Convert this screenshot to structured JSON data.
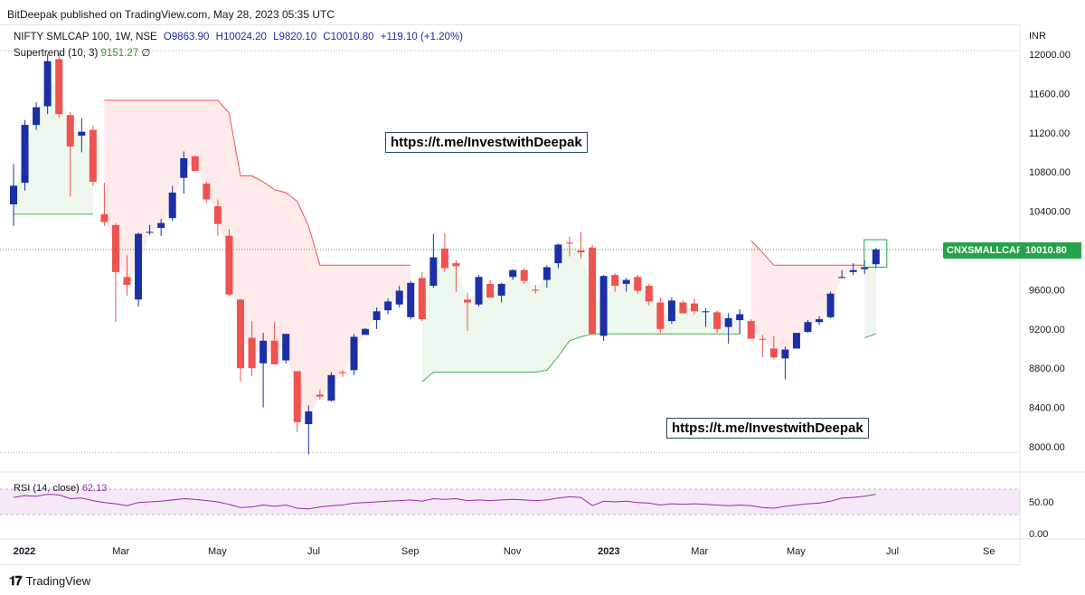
{
  "header": {
    "published": "BitDeepak published on TradingView.com, May 28, 2023 05:35 UTC"
  },
  "legend": {
    "symbol": "NIFTY SMLCAP 100, 1W, NSE",
    "open": "O9863.90",
    "high": "H10024.20",
    "low": "L9820.10",
    "close": "C10010.80",
    "change": "+119.10 (+1.20%)"
  },
  "supertrend": {
    "label": "Supertrend (10, 3)",
    "value": "9151.27",
    "extra": "∅"
  },
  "rsi": {
    "label": "RSI (14, close)",
    "value": "62.13"
  },
  "links": {
    "link1": "https://t.me/InvestwithDeepak",
    "link2": "https://t.me/InvestwithDeepak"
  },
  "price_badge": {
    "symbol": "CNXSMALLCAP",
    "value": "10010.80"
  },
  "footer": {
    "brand": "TradingView"
  },
  "colors": {
    "up": "#1b2fa8",
    "down": "#ef5350",
    "supertrend_up": "#4caf50",
    "supertrend_down": "#ef5350",
    "rsi_line": "#9c27b0",
    "badge": "#26a34a"
  },
  "chart_data": {
    "type": "candlestick",
    "currency": "INR",
    "price_axis": {
      "ylim": [
        7900,
        12100
      ],
      "ticks": [
        "12000.00",
        "11600.00",
        "11200.00",
        "10800.00",
        "10400.00",
        "10000.00",
        "9600.00",
        "9200.00",
        "8800.00",
        "8400.00",
        "8000.00"
      ]
    },
    "rsi_axis": {
      "ticks": [
        "50.00",
        "0.00"
      ],
      "band": [
        30,
        70
      ]
    },
    "x_axis": {
      "labels": [
        "2022",
        "Mar",
        "May",
        "Jul",
        "Sep",
        "Nov",
        "2023",
        "Mar",
        "May",
        "Jul",
        "Se"
      ],
      "label_weeks": [
        0,
        8.5,
        17,
        25.5,
        34,
        43,
        51.5,
        59.5,
        68,
        76.5,
        85
      ]
    },
    "candles": [
      {
        "w": 0,
        "o": 10470,
        "h": 10880,
        "l": 10250,
        "c": 10660
      },
      {
        "w": 1,
        "o": 10690,
        "h": 11330,
        "l": 10610,
        "c": 11280
      },
      {
        "w": 2,
        "o": 11280,
        "h": 11510,
        "l": 11230,
        "c": 11460
      },
      {
        "w": 3,
        "o": 11470,
        "h": 12000,
        "l": 11390,
        "c": 11930
      },
      {
        "w": 4,
        "o": 11950,
        "h": 12010,
        "l": 11350,
        "c": 11390
      },
      {
        "w": 5,
        "o": 11380,
        "h": 11410,
        "l": 10550,
        "c": 11060
      },
      {
        "w": 6,
        "o": 11170,
        "h": 11350,
        "l": 11000,
        "c": 11210
      },
      {
        "w": 7,
        "o": 11230,
        "h": 11270,
        "l": 10660,
        "c": 10700
      },
      {
        "w": 8,
        "o": 10370,
        "h": 10690,
        "l": 10250,
        "c": 10290
      },
      {
        "w": 9,
        "o": 10260,
        "h": 10280,
        "l": 9270,
        "c": 9780
      },
      {
        "w": 10,
        "o": 9730,
        "h": 9950,
        "l": 9540,
        "c": 9650
      },
      {
        "w": 11,
        "o": 9500,
        "h": 10180,
        "l": 9430,
        "c": 10170
      },
      {
        "w": 12,
        "o": 10180,
        "h": 10260,
        "l": 10160,
        "c": 10190
      },
      {
        "w": 13,
        "o": 10230,
        "h": 10320,
        "l": 10150,
        "c": 10280
      },
      {
        "w": 14,
        "o": 10330,
        "h": 10660,
        "l": 10300,
        "c": 10590
      },
      {
        "w": 15,
        "o": 10740,
        "h": 11010,
        "l": 10580,
        "c": 10940
      },
      {
        "w": 16,
        "o": 10960,
        "h": 10970,
        "l": 10820,
        "c": 10810
      },
      {
        "w": 17,
        "o": 10680,
        "h": 10700,
        "l": 10490,
        "c": 10520
      },
      {
        "w": 18,
        "o": 10450,
        "h": 10520,
        "l": 10150,
        "c": 10270
      },
      {
        "w": 19,
        "o": 10150,
        "h": 10220,
        "l": 9540,
        "c": 9550
      },
      {
        "w": 20,
        "o": 9500,
        "h": 9500,
        "l": 8660,
        "c": 8800
      },
      {
        "w": 21,
        "o": 9110,
        "h": 9280,
        "l": 8720,
        "c": 8800
      },
      {
        "w": 22,
        "o": 8850,
        "h": 9160,
        "l": 8400,
        "c": 9080
      },
      {
        "w": 23,
        "o": 9080,
        "h": 9270,
        "l": 8840,
        "c": 8840
      },
      {
        "w": 24,
        "o": 8880,
        "h": 9110,
        "l": 8850,
        "c": 9150
      },
      {
        "w": 25,
        "o": 8770,
        "h": 8770,
        "l": 8150,
        "c": 8250
      },
      {
        "w": 26,
        "o": 8230,
        "h": 8420,
        "l": 7920,
        "c": 8360
      },
      {
        "w": 27,
        "o": 8530,
        "h": 8580,
        "l": 8480,
        "c": 8510
      },
      {
        "w": 28,
        "o": 8470,
        "h": 8760,
        "l": 8460,
        "c": 8730
      },
      {
        "w": 29,
        "o": 8760,
        "h": 8780,
        "l": 8710,
        "c": 8750
      },
      {
        "w": 30,
        "o": 8780,
        "h": 9150,
        "l": 8730,
        "c": 9120
      },
      {
        "w": 31,
        "o": 9140,
        "h": 9210,
        "l": 9150,
        "c": 9200
      },
      {
        "w": 32,
        "o": 9290,
        "h": 9420,
        "l": 9200,
        "c": 9380
      },
      {
        "w": 33,
        "o": 9390,
        "h": 9510,
        "l": 9350,
        "c": 9480
      },
      {
        "w": 34,
        "o": 9450,
        "h": 9640,
        "l": 9420,
        "c": 9590
      },
      {
        "w": 35,
        "o": 9320,
        "h": 9690,
        "l": 9300,
        "c": 9670
      },
      {
        "w": 36,
        "o": 9720,
        "h": 9780,
        "l": 9280,
        "c": 9300
      },
      {
        "w": 37,
        "o": 9640,
        "h": 10170,
        "l": 9620,
        "c": 9930
      },
      {
        "w": 38,
        "o": 10020,
        "h": 10180,
        "l": 9780,
        "c": 9820
      },
      {
        "w": 39,
        "o": 9870,
        "h": 9900,
        "l": 9580,
        "c": 9840
      },
      {
        "w": 40,
        "o": 9500,
        "h": 9570,
        "l": 9180,
        "c": 9470
      },
      {
        "w": 41,
        "o": 9450,
        "h": 9750,
        "l": 9430,
        "c": 9730
      },
      {
        "w": 42,
        "o": 9660,
        "h": 9700,
        "l": 9530,
        "c": 9520
      },
      {
        "w": 43,
        "o": 9540,
        "h": 9670,
        "l": 9470,
        "c": 9660
      },
      {
        "w": 44,
        "o": 9730,
        "h": 9810,
        "l": 9700,
        "c": 9800
      },
      {
        "w": 45,
        "o": 9800,
        "h": 9820,
        "l": 9660,
        "c": 9690
      },
      {
        "w": 46,
        "o": 9600,
        "h": 9650,
        "l": 9560,
        "c": 9590
      },
      {
        "w": 47,
        "o": 9700,
        "h": 9850,
        "l": 9620,
        "c": 9830
      },
      {
        "w": 48,
        "o": 9870,
        "h": 10070,
        "l": 9820,
        "c": 10060
      },
      {
        "w": 49,
        "o": 10080,
        "h": 10140,
        "l": 9940,
        "c": 10070
      },
      {
        "w": 50,
        "o": 10000,
        "h": 10190,
        "l": 9920,
        "c": 9980
      },
      {
        "w": 51,
        "o": 10030,
        "h": 10060,
        "l": 9140,
        "c": 9150
      },
      {
        "w": 52,
        "o": 9130,
        "h": 9750,
        "l": 9080,
        "c": 9740
      },
      {
        "w": 53,
        "o": 9750,
        "h": 9770,
        "l": 9580,
        "c": 9640
      },
      {
        "w": 54,
        "o": 9660,
        "h": 9720,
        "l": 9580,
        "c": 9700
      },
      {
        "w": 55,
        "o": 9730,
        "h": 9750,
        "l": 9560,
        "c": 9590
      },
      {
        "w": 56,
        "o": 9640,
        "h": 9660,
        "l": 9440,
        "c": 9480
      },
      {
        "w": 57,
        "o": 9470,
        "h": 9520,
        "l": 9160,
        "c": 9200
      },
      {
        "w": 58,
        "o": 9280,
        "h": 9520,
        "l": 9250,
        "c": 9490
      },
      {
        "w": 59,
        "o": 9470,
        "h": 9490,
        "l": 9360,
        "c": 9360
      },
      {
        "w": 60,
        "o": 9460,
        "h": 9510,
        "l": 9350,
        "c": 9380
      },
      {
        "w": 61,
        "o": 9370,
        "h": 9410,
        "l": 9220,
        "c": 9380
      },
      {
        "w": 62,
        "o": 9370,
        "h": 9390,
        "l": 9160,
        "c": 9200
      },
      {
        "w": 63,
        "o": 9220,
        "h": 9360,
        "l": 9050,
        "c": 9310
      },
      {
        "w": 64,
        "o": 9290,
        "h": 9400,
        "l": 9150,
        "c": 9350
      },
      {
        "w": 65,
        "o": 9280,
        "h": 9300,
        "l": 9110,
        "c": 9100
      },
      {
        "w": 66,
        "o": 9100,
        "h": 9140,
        "l": 8910,
        "c": 9090
      },
      {
        "w": 67,
        "o": 9000,
        "h": 9130,
        "l": 8890,
        "c": 8910
      },
      {
        "w": 68,
        "o": 8900,
        "h": 9020,
        "l": 8690,
        "c": 8990
      },
      {
        "w": 69,
        "o": 9000,
        "h": 9160,
        "l": 9010,
        "c": 9160
      },
      {
        "w": 70,
        "o": 9170,
        "h": 9290,
        "l": 9160,
        "c": 9270
      },
      {
        "w": 71,
        "o": 9270,
        "h": 9330,
        "l": 9240,
        "c": 9300
      },
      {
        "w": 72,
        "o": 9320,
        "h": 9580,
        "l": 9310,
        "c": 9560
      },
      {
        "w": 73,
        "o": 9720,
        "h": 9800,
        "l": 9720,
        "c": 9730
      },
      {
        "w": 74,
        "o": 9780,
        "h": 9870,
        "l": 9750,
        "c": 9800
      },
      {
        "w": 75,
        "o": 9810,
        "h": 9900,
        "l": 9760,
        "c": 9830
      },
      {
        "w": 76,
        "o": 9860,
        "h": 10024,
        "l": 9820,
        "c": 10010
      }
    ],
    "supertrend_segments": [
      {
        "trend": "up",
        "points": [
          [
            0,
            10370
          ],
          [
            1,
            10370
          ],
          [
            2,
            10370
          ],
          [
            3,
            10370
          ],
          [
            4,
            10370
          ],
          [
            5,
            10370
          ],
          [
            6,
            10370
          ],
          [
            7,
            10370
          ]
        ]
      },
      {
        "trend": "down",
        "points": [
          [
            8,
            11530
          ],
          [
            9,
            11530
          ],
          [
            10,
            11530
          ],
          [
            11,
            11530
          ],
          [
            12,
            11530
          ],
          [
            13,
            11530
          ],
          [
            14,
            11530
          ],
          [
            15,
            11530
          ],
          [
            16,
            11530
          ],
          [
            17,
            11530
          ],
          [
            18,
            11530
          ],
          [
            19,
            11400
          ],
          [
            20,
            10760
          ],
          [
            21,
            10760
          ],
          [
            22,
            10700
          ],
          [
            23,
            10620
          ],
          [
            24,
            10590
          ],
          [
            25,
            10500
          ],
          [
            26,
            10250
          ],
          [
            27,
            9850
          ],
          [
            28,
            9850
          ],
          [
            29,
            9850
          ],
          [
            30,
            9850
          ],
          [
            31,
            9850
          ],
          [
            32,
            9850
          ],
          [
            33,
            9850
          ],
          [
            34,
            9850
          ],
          [
            35,
            9850
          ]
        ]
      },
      {
        "trend": "up",
        "points": [
          [
            36,
            8660
          ],
          [
            37,
            8760
          ],
          [
            38,
            8760
          ],
          [
            39,
            8760
          ],
          [
            40,
            8760
          ],
          [
            41,
            8760
          ],
          [
            42,
            8760
          ],
          [
            43,
            8760
          ],
          [
            44,
            8760
          ],
          [
            45,
            8760
          ],
          [
            46,
            8760
          ],
          [
            47,
            8780
          ],
          [
            48,
            8920
          ],
          [
            49,
            9080
          ],
          [
            50,
            9120
          ],
          [
            51,
            9150
          ],
          [
            52,
            9150
          ],
          [
            53,
            9150
          ],
          [
            54,
            9150
          ],
          [
            55,
            9150
          ],
          [
            56,
            9150
          ],
          [
            57,
            9150
          ],
          [
            58,
            9150
          ],
          [
            59,
            9150
          ],
          [
            60,
            9150
          ],
          [
            61,
            9150
          ],
          [
            62,
            9150
          ],
          [
            63,
            9150
          ],
          [
            64,
            9150
          ]
        ]
      },
      {
        "trend": "down",
        "points": [
          [
            65,
            10100
          ],
          [
            66,
            9980
          ],
          [
            67,
            9850
          ],
          [
            68,
            9850
          ],
          [
            69,
            9850
          ],
          [
            70,
            9850
          ],
          [
            71,
            9850
          ],
          [
            72,
            9850
          ],
          [
            73,
            9850
          ],
          [
            74,
            9850
          ],
          [
            75,
            9850
          ]
        ]
      },
      {
        "trend": "up",
        "points": [
          [
            75,
            9110
          ],
          [
            76,
            9151
          ]
        ]
      }
    ],
    "rsi_values": [
      57,
      60,
      59,
      62,
      61,
      55,
      56,
      52,
      49,
      47,
      44,
      49,
      50,
      51,
      53,
      55,
      54,
      52,
      50,
      46,
      41,
      42,
      45,
      43,
      45,
      40,
      39,
      42,
      44,
      45,
      48,
      49,
      50,
      51,
      52,
      53,
      51,
      55,
      54,
      55,
      52,
      53,
      52,
      53,
      54,
      53,
      52,
      53,
      56,
      58,
      57,
      44,
      51,
      50,
      51,
      49,
      48,
      45,
      47,
      46,
      47,
      46,
      45,
      44,
      45,
      44,
      41,
      40,
      43,
      45,
      47,
      48,
      51,
      56,
      57,
      59,
      62
    ]
  }
}
